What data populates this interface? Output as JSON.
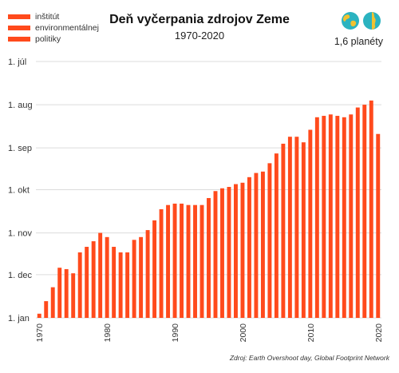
{
  "logo": {
    "lines": [
      "inštitút",
      "environmentálnej",
      "politiky"
    ],
    "color": "#FF4A1C"
  },
  "header": {
    "title": "Deň vyčerpania zdrojov Zeme",
    "subtitle": "1970-2020"
  },
  "badge": {
    "label": "1,6 planéty",
    "icons": [
      "globe-icon",
      "globe-icon"
    ],
    "colors": {
      "ocean": "#2BB3C0",
      "land": "#F2C230"
    }
  },
  "source": "Zdroj: Earth Overshoot day, Global Footprint Network",
  "chart_data": {
    "type": "bar",
    "title": "Deň vyčerpania zdrojov Zeme",
    "subtitle": "1970-2020",
    "xlabel": "",
    "ylabel": "",
    "bar_color": "#FF4A1C",
    "grid": "horizontal",
    "x_tick_labels": [
      "1970",
      "1980",
      "1990",
      "2000",
      "2010",
      "2020"
    ],
    "y_tick_labels": [
      "1. júl",
      "1. aug",
      "1. sep",
      "1. okt",
      "1. nov",
      "1. dec",
      "1. jan"
    ],
    "y_tick_values": [
      "07-01",
      "08-01",
      "09-01",
      "10-01",
      "11-01",
      "12-01",
      "01-01"
    ],
    "y_axis_inverted": true,
    "y_range": [
      "01-01",
      "07-01"
    ],
    "categories": [
      1970,
      1971,
      1972,
      1973,
      1974,
      1975,
      1976,
      1977,
      1978,
      1979,
      1980,
      1981,
      1982,
      1983,
      1984,
      1985,
      1986,
      1987,
      1988,
      1989,
      1990,
      1991,
      1992,
      1993,
      1994,
      1995,
      1996,
      1997,
      1998,
      1999,
      2000,
      2001,
      2002,
      2003,
      2004,
      2005,
      2006,
      2007,
      2008,
      2009,
      2010,
      2011,
      2012,
      2013,
      2014,
      2015,
      2016,
      2017,
      2018,
      2019,
      2020
    ],
    "values": [
      "12-29",
      "12-20",
      "12-10",
      "11-26",
      "11-27",
      "11-30",
      "11-15",
      "11-11",
      "11-07",
      "11-01",
      "11-04",
      "11-11",
      "11-15",
      "11-15",
      "11-06",
      "11-04",
      "10-30",
      "10-23",
      "10-15",
      "10-12",
      "10-11",
      "10-11",
      "10-12",
      "10-12",
      "10-12",
      "10-07",
      "10-02",
      "09-30",
      "09-29",
      "09-27",
      "09-26",
      "09-22",
      "09-19",
      "09-18",
      "09-12",
      "09-05",
      "08-29",
      "08-24",
      "08-24",
      "08-28",
      "08-19",
      "08-10",
      "08-09",
      "08-08",
      "08-09",
      "08-10",
      "08-08",
      "08-03",
      "08-01",
      "07-29",
      "08-22"
    ]
  }
}
